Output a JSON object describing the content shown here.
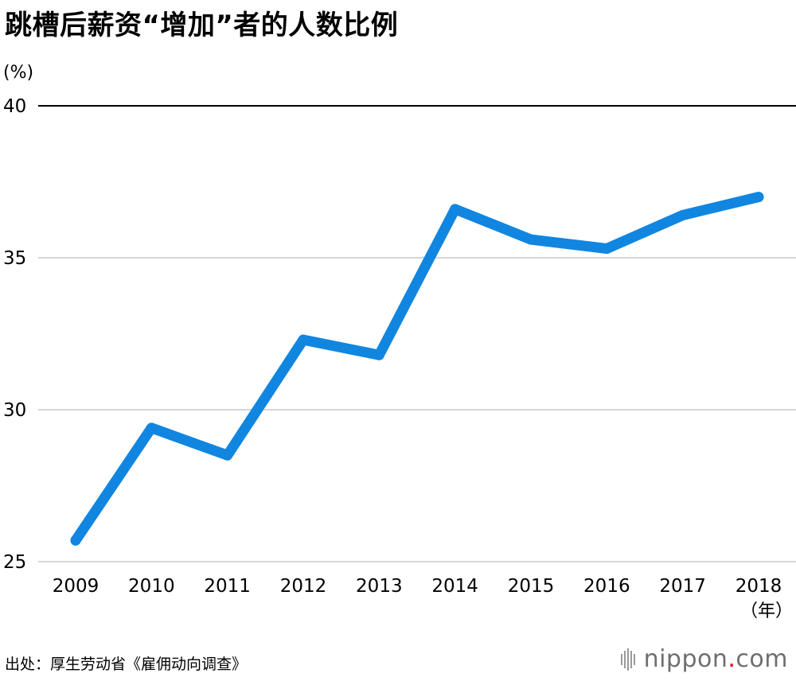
{
  "title": "跳槽后薪资“增加”者的人数比例",
  "source": "出处：厚生劳动省《雇佣动向调查》",
  "logo": {
    "name": "nippon",
    "dot": ".",
    "suffix": "com"
  },
  "colors": {
    "line": "#1186e0",
    "grid": "#c8c8c8",
    "top_grid": "#000000",
    "logo_dot": "#e60012"
  },
  "chart_data": {
    "type": "line",
    "title": "跳槽后薪资“增加”者的人数比例",
    "ylabel": "(%)",
    "xunit": "（年）",
    "categories": [
      "2009",
      "2010",
      "2011",
      "2012",
      "2013",
      "2014",
      "2015",
      "2016",
      "2017",
      "2018"
    ],
    "series": [
      {
        "values": [
          25.7,
          29.4,
          28.5,
          32.3,
          31.8,
          36.6,
          35.6,
          35.3,
          36.4,
          37.0
        ]
      }
    ],
    "ylim": [
      25,
      40
    ],
    "yticks": [
      "25",
      "30",
      "35",
      "40"
    ],
    "grid": true
  }
}
